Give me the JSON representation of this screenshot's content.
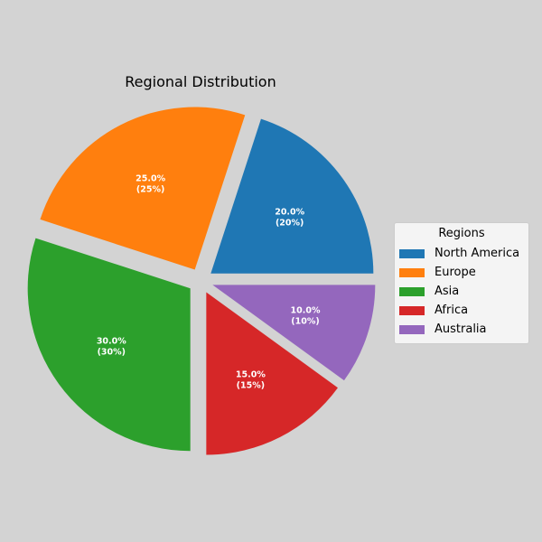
{
  "chart_data": {
    "type": "pie",
    "title": "Regional Distribution",
    "categories": [
      "North America",
      "Europe",
      "Asia",
      "Africa",
      "Australia"
    ],
    "values": [
      20,
      25,
      30,
      15,
      10
    ],
    "percent_labels": [
      "20.0%",
      "25.0%",
      "30.0%",
      "15.0%",
      "10.0%"
    ],
    "value_labels": [
      "(20%)",
      "(25%)",
      "(30%)",
      "(15%)",
      "(10%)"
    ],
    "colors": [
      "#1f77b4",
      "#ff7f0e",
      "#2ca02c",
      "#d62728",
      "#9467bd"
    ],
    "exploded": true,
    "start_angle_deg": 0,
    "direction": "counterclockwise",
    "legend": {
      "title": "Regions",
      "placement": "center-right"
    }
  }
}
